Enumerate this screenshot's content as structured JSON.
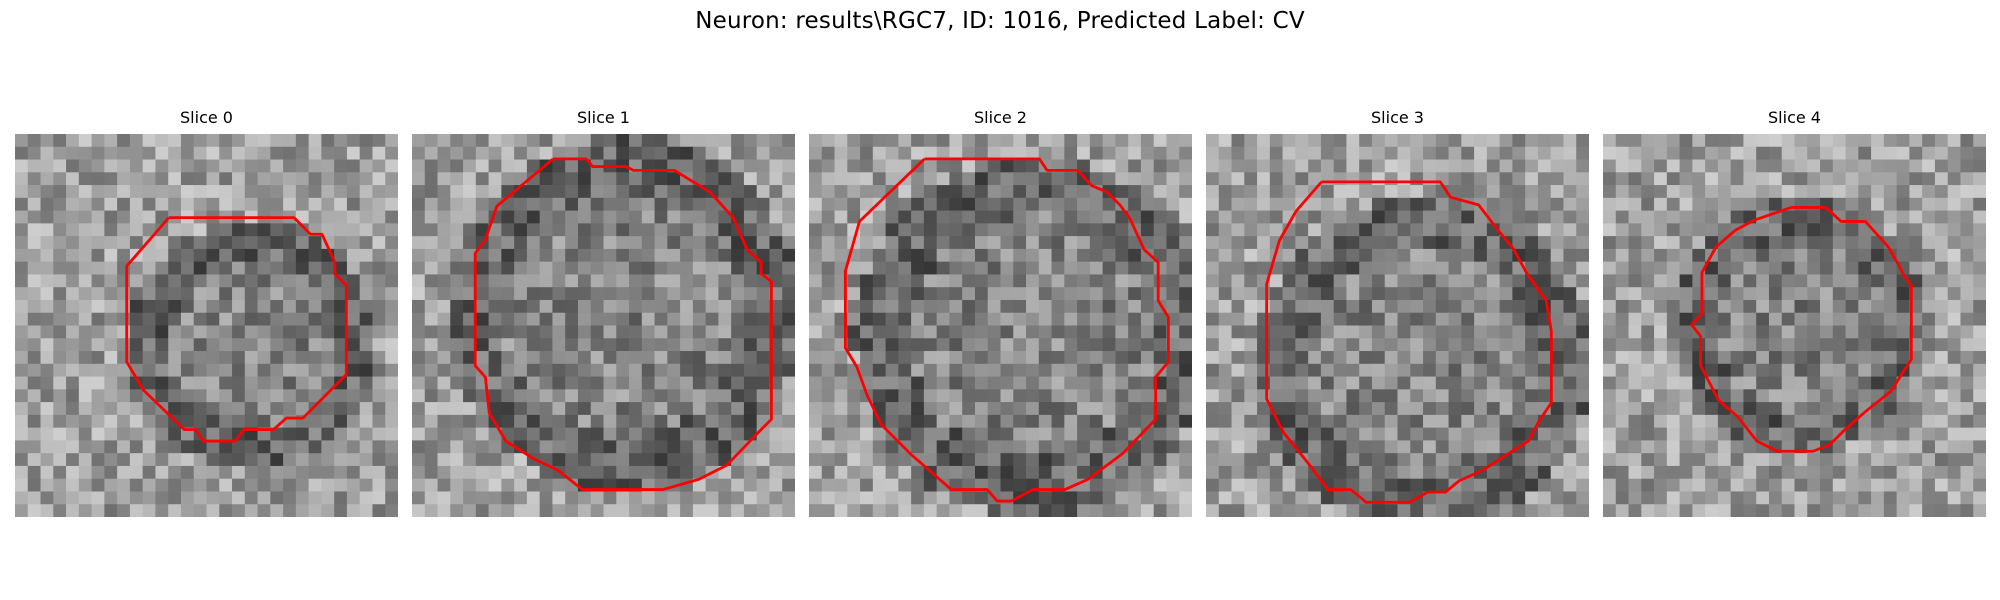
{
  "figure": {
    "title": "Neuron: results\\RGC7, ID: 1016, Predicted Label: CV",
    "contour_color": "#ff0000",
    "colormap": "gray",
    "panels": [
      {
        "title": "Slice 0",
        "contour": [
          [
            120.5,
            65.5
          ],
          [
            218.5,
            65.5
          ],
          [
            231.5,
            78.5
          ],
          [
            240.5,
            78.5
          ],
          [
            250.5,
            100.5
          ],
          [
            250.5,
            109.5
          ],
          [
            259.5,
            118.5
          ],
          [
            259.5,
            188.5
          ],
          [
            225.5,
            222.5
          ],
          [
            212.5,
            222.5
          ],
          [
            202.5,
            231.5
          ],
          [
            179.5,
            231.5
          ],
          [
            172.5,
            240.5
          ],
          [
            147.5,
            240.5
          ],
          [
            141.5,
            231.5
          ],
          [
            132.5,
            231.5
          ],
          [
            100.5,
            200.5
          ],
          [
            87.5,
            178.5
          ],
          [
            87.5,
            103.5
          ]
        ]
      },
      {
        "title": "Slice 1",
        "contour": [
          [
            110.5,
            19.5
          ],
          [
            136.5,
            19.5
          ],
          [
            141.5,
            25.5
          ],
          [
            167.5,
            25.5
          ],
          [
            173.5,
            28.5
          ],
          [
            205.5,
            28.5
          ],
          [
            233.5,
            45.5
          ],
          [
            251.5,
            65.5
          ],
          [
            262.5,
            90.5
          ],
          [
            273.5,
            100.5
          ],
          [
            273.5,
            109.5
          ],
          [
            281.5,
            115.5
          ],
          [
            281.5,
            223.5
          ],
          [
            271.5,
            233.5
          ],
          [
            246.5,
            259.5
          ],
          [
            224.5,
            270.5
          ],
          [
            196.5,
            278.5
          ],
          [
            133.5,
            278.5
          ],
          [
            114.5,
            263.5
          ],
          [
            95.5,
            254.5
          ],
          [
            73.5,
            240.5
          ],
          [
            60.5,
            218.5
          ],
          [
            57.5,
            190.5
          ],
          [
            49.5,
            181.5
          ],
          [
            49.5,
            93.5
          ],
          [
            57.5,
            82.5
          ],
          [
            66.5,
            56.5
          ]
        ]
      },
      {
        "title": "Slice 2",
        "contour": [
          [
            90.5,
            19.5
          ],
          [
            180.5,
            19.5
          ],
          [
            186.5,
            28.5
          ],
          [
            210.5,
            28.5
          ],
          [
            221.5,
            40.5
          ],
          [
            233.5,
            45.5
          ],
          [
            243.5,
            55.5
          ],
          [
            251.5,
            66.5
          ],
          [
            262.5,
            90.5
          ],
          [
            273.5,
            100.5
          ],
          [
            273.5,
            130.5
          ],
          [
            281.5,
            143.5
          ],
          [
            281.5,
            178.5
          ],
          [
            271.5,
            190.5
          ],
          [
            271.5,
            223.5
          ],
          [
            245.5,
            250.5
          ],
          [
            218.5,
            270.5
          ],
          [
            200.5,
            278.5
          ],
          [
            175.5,
            278.5
          ],
          [
            158.5,
            287.5
          ],
          [
            147.5,
            287.5
          ],
          [
            139.5,
            278.5
          ],
          [
            111.5,
            278.5
          ],
          [
            80.5,
            251.5
          ],
          [
            56.5,
            227.5
          ],
          [
            45.5,
            204.5
          ],
          [
            37.5,
            182.5
          ],
          [
            28.5,
            167.5
          ],
          [
            28.5,
            107.5
          ],
          [
            39.5,
            68.5
          ]
        ]
      },
      {
        "title": "Slice 3",
        "contour": [
          [
            90.5,
            37.5
          ],
          [
            183.5,
            37.5
          ],
          [
            191.5,
            49.5
          ],
          [
            213.5,
            55.5
          ],
          [
            230.5,
            77.5
          ],
          [
            240.5,
            89.5
          ],
          [
            251.5,
            109.5
          ],
          [
            266.5,
            130.5
          ],
          [
            270.5,
            154.5
          ],
          [
            270.5,
            210.5
          ],
          [
            260.5,
            225.5
          ],
          [
            252.5,
            240.5
          ],
          [
            233.5,
            252.5
          ],
          [
            216.5,
            263.5
          ],
          [
            198.5,
            271.5
          ],
          [
            187.5,
            280.5
          ],
          [
            173.5,
            280.5
          ],
          [
            159.5,
            288.5
          ],
          [
            125.5,
            288.5
          ],
          [
            113.5,
            278.5
          ],
          [
            95.5,
            278.5
          ],
          [
            80.5,
            258.5
          ],
          [
            60.5,
            233.5
          ],
          [
            47.5,
            207.5
          ],
          [
            47.5,
            117.5
          ],
          [
            57.5,
            83.5
          ],
          [
            70.5,
            60.5
          ]
        ]
      },
      {
        "title": "Slice 4",
        "contour": [
          [
            147.5,
            57.5
          ],
          [
            174.5,
            57.5
          ],
          [
            186.5,
            68.5
          ],
          [
            205.5,
            68.5
          ],
          [
            223.5,
            88.5
          ],
          [
            231.5,
            102.5
          ],
          [
            235.5,
            110.5
          ],
          [
            241.5,
            118.5
          ],
          [
            241.5,
            176.5
          ],
          [
            225.5,
            201.5
          ],
          [
            205.5,
            217.5
          ],
          [
            188.5,
            232.5
          ],
          [
            177.5,
            243.5
          ],
          [
            164.5,
            248.5
          ],
          [
            136.5,
            248.5
          ],
          [
            120.5,
            240.5
          ],
          [
            105.5,
            221.5
          ],
          [
            90.5,
            208.5
          ],
          [
            76.5,
            181.5
          ],
          [
            76.5,
            158.5
          ],
          [
            69.5,
            149.5
          ],
          [
            77.5,
            140.5
          ],
          [
            77.5,
            108.5
          ],
          [
            88.5,
            88.5
          ],
          [
            103.5,
            75.5
          ],
          [
            118.5,
            67.5
          ]
        ]
      }
    ]
  }
}
